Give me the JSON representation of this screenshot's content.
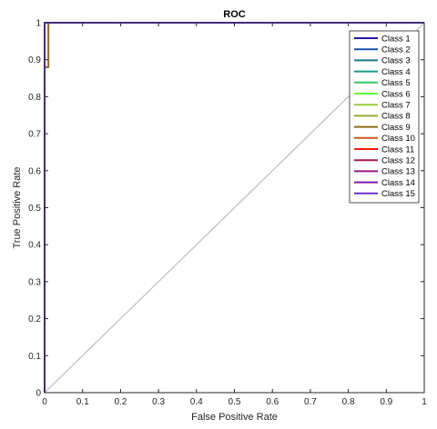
{
  "chart_data": {
    "type": "line",
    "title": "ROC",
    "xlabel": "False Positive Rate",
    "ylabel": "True Positive Rate",
    "xlim": [
      0,
      1
    ],
    "ylim": [
      0,
      1
    ],
    "xticks": [
      0,
      0.1,
      0.2,
      0.3,
      0.4,
      0.5,
      0.6,
      0.7,
      0.8,
      0.9,
      1
    ],
    "yticks": [
      0,
      0.1,
      0.2,
      0.3,
      0.4,
      0.5,
      0.6,
      0.7,
      0.8,
      0.9,
      1
    ],
    "xtick_labels": [
      "0",
      "0.1",
      "0.2",
      "0.3",
      "0.4",
      "0.5",
      "0.6",
      "0.7",
      "0.8",
      "0.9",
      "1"
    ],
    "ytick_labels": [
      "0",
      "0.1",
      "0.2",
      "0.3",
      "0.4",
      "0.5",
      "0.6",
      "0.7",
      "0.8",
      "0.9",
      "1"
    ],
    "grid": false,
    "legend_position": "top-right",
    "reference_line": {
      "x": [
        0,
        1
      ],
      "y": [
        0,
        1
      ],
      "color": "#c8c8c8"
    },
    "series": [
      {
        "name": "Class 1",
        "color": "#1a1aa6",
        "x": [
          0,
          0,
          1
        ],
        "y": [
          0,
          1,
          1
        ]
      },
      {
        "name": "Class 2",
        "color": "#1a4fb3",
        "x": [
          0,
          0,
          1
        ],
        "y": [
          0,
          1,
          1
        ]
      },
      {
        "name": "Class 3",
        "color": "#1a7a8c",
        "x": [
          0,
          0,
          1
        ],
        "y": [
          0,
          1,
          1
        ]
      },
      {
        "name": "Class 4",
        "color": "#1a9a8a",
        "x": [
          0,
          0,
          1
        ],
        "y": [
          0,
          1,
          1
        ]
      },
      {
        "name": "Class 5",
        "color": "#33cc66",
        "x": [
          0,
          0,
          1
        ],
        "y": [
          0,
          1,
          1
        ]
      },
      {
        "name": "Class 6",
        "color": "#66ff33",
        "x": [
          0,
          0,
          1
        ],
        "y": [
          0,
          1,
          1
        ]
      },
      {
        "name": "Class 7",
        "color": "#99cc33",
        "x": [
          0,
          0,
          1
        ],
        "y": [
          0,
          1,
          1
        ]
      },
      {
        "name": "Class 8",
        "color": "#99a633",
        "x": [
          0,
          0,
          1
        ],
        "y": [
          0,
          1,
          1
        ]
      },
      {
        "name": "Class 9",
        "color": "#8c6b1a",
        "x": [
          0,
          0,
          0.01,
          0.01,
          1
        ],
        "y": [
          0,
          0.88,
          0.88,
          1,
          1
        ]
      },
      {
        "name": "Class 10",
        "color": "#cc5a1a",
        "x": [
          0,
          0,
          1
        ],
        "y": [
          0,
          1,
          1
        ]
      },
      {
        "name": "Class 11",
        "color": "#ff1a1a",
        "x": [
          0,
          0,
          1
        ],
        "y": [
          0,
          1,
          1
        ]
      },
      {
        "name": "Class 12",
        "color": "#a61a4d",
        "x": [
          0,
          0,
          1
        ],
        "y": [
          0,
          1,
          1
        ]
      },
      {
        "name": "Class 13",
        "color": "#991a8c",
        "x": [
          0,
          0,
          1
        ],
        "y": [
          0,
          1,
          1
        ]
      },
      {
        "name": "Class 14",
        "color": "#801aa6",
        "x": [
          0,
          0,
          1
        ],
        "y": [
          0,
          1,
          1
        ]
      },
      {
        "name": "Class 15",
        "color": "#6633cc",
        "x": [
          0,
          0,
          1
        ],
        "y": [
          0,
          1,
          1
        ]
      }
    ]
  }
}
